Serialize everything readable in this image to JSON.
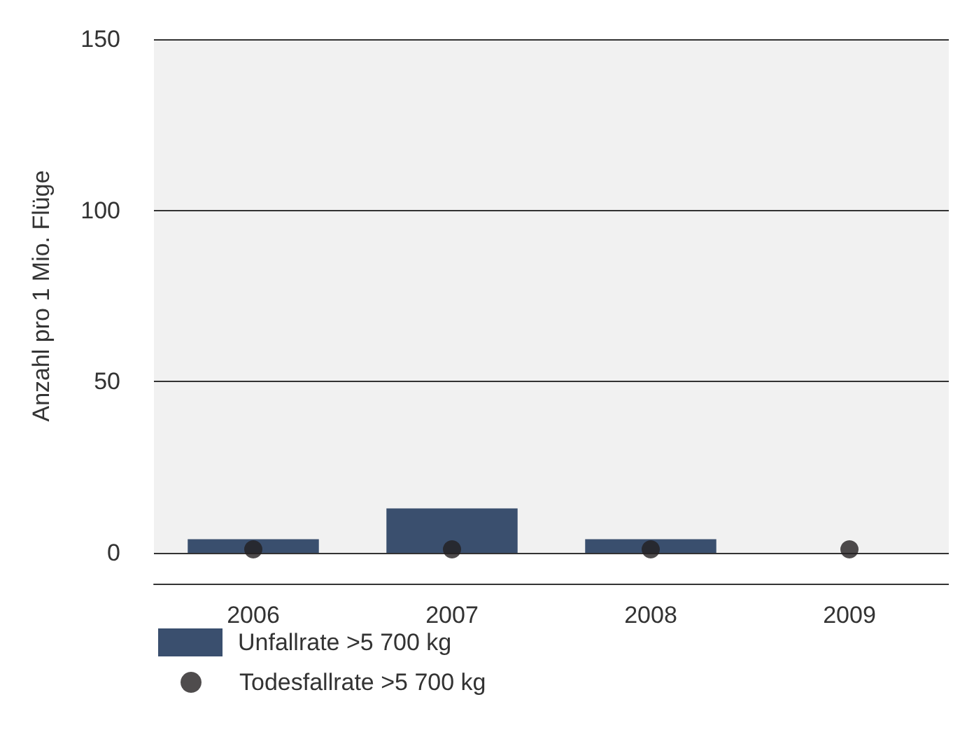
{
  "chart_data": {
    "type": "bar",
    "ylabel": "Anzahl pro 1 Mio. Flüge",
    "categories": [
      "2006",
      "2007",
      "2008",
      "2009"
    ],
    "series": [
      {
        "name": "Unfallrate >5 700 kg",
        "color": "#3a4f6e",
        "values": [
          4,
          13,
          4,
          0
        ]
      },
      {
        "name": "Todesfallrate >5 700 kg",
        "type": "scatter",
        "color": "#231f20",
        "values": [
          1,
          1,
          1,
          1
        ]
      }
    ],
    "ylim": [
      0,
      150
    ],
    "yticks": [
      0,
      50,
      100,
      150
    ],
    "grid": "y",
    "legend": "bottom left",
    "marker": "circle"
  }
}
